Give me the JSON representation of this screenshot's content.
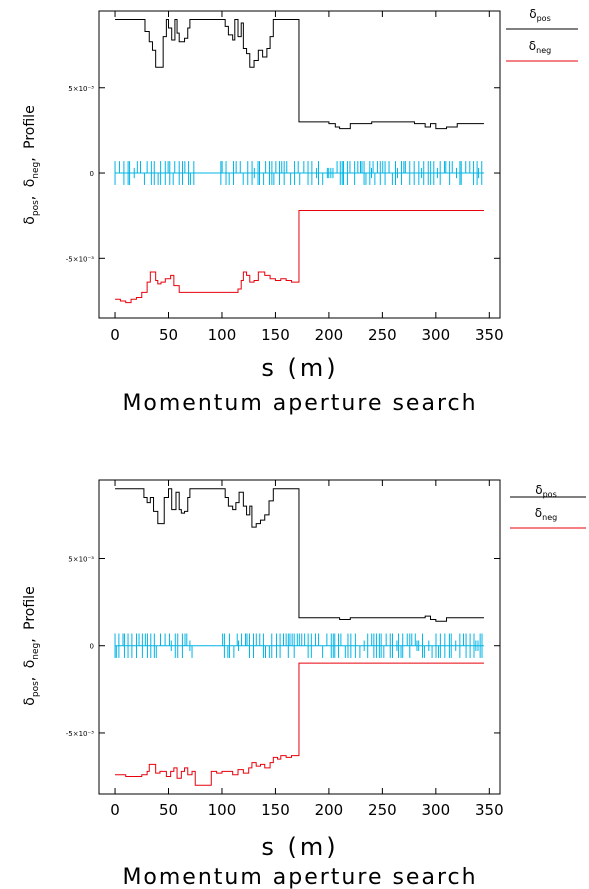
{
  "chart_data": [
    {
      "type": "line",
      "title": "Momentum aperture search",
      "xlabel": "s (m)",
      "ylabel": "δpos, δneg, Profile",
      "ylabel_parts": {
        "d1": "δ",
        "s1": "pos",
        "c1": ", ",
        "d2": "δ",
        "s2": "neg",
        "c2": ", ",
        "tail": "Profile"
      },
      "xlim": [
        -15,
        360
      ],
      "ylim": [
        -0.0085,
        0.0095
      ],
      "x_ticks": [
        0,
        50,
        100,
        150,
        200,
        250,
        300,
        350
      ],
      "x_tick_labels": [
        "0",
        "50",
        "100",
        "150",
        "200",
        "250",
        "300",
        "350"
      ],
      "y_ticks": [
        -0.005,
        0,
        0.005
      ],
      "y_tick_labels": [
        "-5×10⁻³",
        "0",
        "5×10⁻³"
      ],
      "legend": {
        "position": "right",
        "entries": [
          {
            "symbol": "δ",
            "sub": "pos",
            "color": "#000000"
          },
          {
            "symbol": "δ",
            "sub": "neg",
            "color": "#e8000b"
          }
        ]
      },
      "series": [
        {
          "color": "#000000",
          "x": [
            0,
            25,
            28,
            32,
            35,
            38,
            42,
            45,
            48,
            50,
            53,
            56,
            58,
            60,
            62,
            65,
            68,
            70,
            73,
            75,
            100,
            103,
            106,
            110,
            112,
            115,
            118,
            120,
            123,
            126,
            128,
            130,
            134,
            138,
            142,
            145,
            148,
            150,
            172,
            172,
            180,
            200,
            206,
            210,
            220,
            240,
            250,
            280,
            290,
            295,
            300,
            310,
            320,
            340,
            345
          ],
          "y": [
            0.009,
            0.009,
            0.0083,
            0.0077,
            0.0072,
            0.0062,
            0.0062,
            0.008,
            0.009,
            0.0085,
            0.0078,
            0.009,
            0.0082,
            0.0077,
            0.0077,
            0.0079,
            0.0085,
            0.009,
            0.009,
            0.009,
            0.009,
            0.0086,
            0.0081,
            0.0078,
            0.009,
            0.008,
            0.0088,
            0.0073,
            0.007,
            0.0062,
            0.0062,
            0.0066,
            0.0072,
            0.0068,
            0.0073,
            0.008,
            0.009,
            0.009,
            0.009,
            0.003,
            0.003,
            0.0029,
            0.0027,
            0.0026,
            0.0029,
            0.003,
            0.003,
            0.0029,
            0.0027,
            0.0029,
            0.0026,
            0.0027,
            0.0029,
            0.0029,
            0.0029
          ]
        },
        {
          "color": "#e8000b",
          "x": [
            0,
            5,
            10,
            15,
            20,
            25,
            30,
            33,
            35,
            38,
            40,
            43,
            47,
            52,
            55,
            60,
            70,
            90,
            110,
            115,
            118,
            120,
            123,
            126,
            130,
            134,
            138,
            140,
            145,
            150,
            155,
            160,
            165,
            172,
            172,
            200,
            250,
            300,
            345
          ],
          "y": [
            -0.0074,
            -0.0075,
            -0.0076,
            -0.0074,
            -0.0073,
            -0.007,
            -0.0064,
            -0.0058,
            -0.0058,
            -0.0063,
            -0.0065,
            -0.0064,
            -0.0062,
            -0.006,
            -0.0066,
            -0.007,
            -0.007,
            -0.007,
            -0.007,
            -0.0068,
            -0.0063,
            -0.0058,
            -0.006,
            -0.0064,
            -0.0063,
            -0.0058,
            -0.0058,
            -0.006,
            -0.0062,
            -0.0063,
            -0.0062,
            -0.0063,
            -0.0064,
            -0.0064,
            -0.0022,
            -0.0022,
            -0.0022,
            -0.0022,
            -0.0022
          ]
        }
      ],
      "profile": {
        "color": "#00b4e6",
        "x_start": 0,
        "x_end": 345,
        "seed": 7
      }
    },
    {
      "type": "line",
      "title": "Momentum aperture search",
      "xlabel": "s (m)",
      "ylabel": "δpos, δneg, Profile",
      "ylabel_parts": {
        "d1": "δ",
        "s1": "pos",
        "c1": ", ",
        "d2": "δ",
        "s2": "neg",
        "c2": ", ",
        "tail": "Profile"
      },
      "xlim": [
        -15,
        360
      ],
      "ylim": [
        -0.0085,
        0.0095
      ],
      "x_ticks": [
        0,
        50,
        100,
        150,
        200,
        250,
        300,
        350
      ],
      "x_tick_labels": [
        "0",
        "50",
        "100",
        "150",
        "200",
        "250",
        "300",
        "350"
      ],
      "y_ticks": [
        -0.005,
        0,
        0.005
      ],
      "y_tick_labels": [
        "-5×10⁻³",
        "0",
        "5×10⁻³"
      ],
      "legend": {
        "position": "right",
        "entries": [
          {
            "symbol": "δ",
            "sub": "pos",
            "color": "#000000"
          },
          {
            "symbol": "δ",
            "sub": "neg",
            "color": "#e8000b"
          }
        ]
      },
      "series": [
        {
          "color": "#000000",
          "x": [
            0,
            25,
            27,
            30,
            33,
            36,
            40,
            43,
            46,
            50,
            53,
            55,
            57,
            60,
            62,
            65,
            68,
            70,
            73,
            75,
            100,
            103,
            106,
            110,
            113,
            116,
            120,
            123,
            126,
            128,
            132,
            136,
            140,
            144,
            148,
            150,
            172,
            172,
            180,
            200,
            210,
            220,
            240,
            280,
            290,
            295,
            300,
            310,
            320,
            340,
            345
          ],
          "y": [
            0.009,
            0.009,
            0.0085,
            0.0082,
            0.0085,
            0.0077,
            0.007,
            0.007,
            0.0085,
            0.009,
            0.0078,
            0.0078,
            0.0088,
            0.0078,
            0.0076,
            0.0077,
            0.0085,
            0.009,
            0.009,
            0.009,
            0.009,
            0.0085,
            0.008,
            0.0078,
            0.0082,
            0.0088,
            0.008,
            0.0075,
            0.008,
            0.0068,
            0.007,
            0.0072,
            0.0075,
            0.0083,
            0.009,
            0.009,
            0.009,
            0.0016,
            0.0016,
            0.0016,
            0.0015,
            0.0016,
            0.0016,
            0.0016,
            0.0017,
            0.0015,
            0.0014,
            0.0016,
            0.0016,
            0.0016,
            0.0016
          ]
        },
        {
          "color": "#e8000b",
          "x": [
            0,
            5,
            10,
            15,
            20,
            25,
            30,
            32,
            35,
            38,
            42,
            45,
            48,
            52,
            55,
            58,
            62,
            65,
            68,
            72,
            75,
            85,
            90,
            95,
            100,
            105,
            110,
            115,
            120,
            125,
            128,
            132,
            136,
            140,
            145,
            148,
            152,
            155,
            160,
            165,
            172,
            172,
            200,
            250,
            300,
            345
          ],
          "y": [
            -0.0074,
            -0.0074,
            -0.0075,
            -0.0075,
            -0.0075,
            -0.0074,
            -0.0072,
            -0.0068,
            -0.0068,
            -0.0073,
            -0.0072,
            -0.0072,
            -0.0075,
            -0.0072,
            -0.007,
            -0.0076,
            -0.0072,
            -0.007,
            -0.0074,
            -0.0072,
            -0.008,
            -0.008,
            -0.0072,
            -0.0073,
            -0.0072,
            -0.0072,
            -0.0074,
            -0.0071,
            -0.0073,
            -0.007,
            -0.0067,
            -0.0069,
            -0.0068,
            -0.007,
            -0.0067,
            -0.0064,
            -0.0065,
            -0.0063,
            -0.0064,
            -0.0063,
            -0.0063,
            -0.001,
            -0.001,
            -0.001,
            -0.001,
            -0.001
          ]
        }
      ],
      "profile": {
        "color": "#00b4e6",
        "x_start": 0,
        "x_end": 345,
        "seed": 19
      }
    }
  ]
}
